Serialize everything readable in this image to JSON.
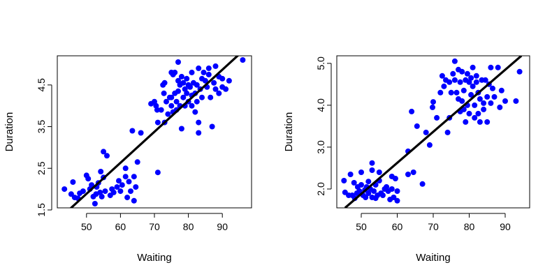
{
  "colors": {
    "points": "#0000ff",
    "fit_line": "#000000",
    "axis": "#000000"
  },
  "chart_data": [
    {
      "type": "scatter",
      "title": "",
      "xlabel": "Waiting",
      "ylabel": "Duration",
      "xlim": [
        41.4,
        98.6
      ],
      "ylim": [
        1.55,
        5.2
      ],
      "xticks": [
        50,
        60,
        70,
        80,
        90
      ],
      "xtick_labels": [
        "50",
        "60",
        "70",
        "80",
        "90"
      ],
      "yticks": [
        1.5,
        2.5,
        3.5,
        4.5
      ],
      "ytick_labels": [
        "1.5",
        "2.5",
        "3.5",
        "4.5"
      ],
      "fit_line": {
        "x": [
          44.8,
          96.5
        ],
        "y": [
          1.5,
          5.35
        ]
      },
      "points": [
        [
          43.5,
          2.0
        ],
        [
          45.5,
          1.88
        ],
        [
          46.0,
          2.17
        ],
        [
          46.5,
          1.8
        ],
        [
          47.5,
          1.78
        ],
        [
          48.0,
          1.9
        ],
        [
          49.0,
          1.95
        ],
        [
          50.0,
          2.33
        ],
        [
          50.5,
          2.25
        ],
        [
          51.0,
          2.0
        ],
        [
          51.5,
          2.1
        ],
        [
          52.0,
          1.82
        ],
        [
          52.5,
          1.65
        ],
        [
          52.8,
          1.88
        ],
        [
          53.0,
          2.05
        ],
        [
          53.5,
          2.15
        ],
        [
          54.0,
          1.92
        ],
        [
          54.2,
          2.42
        ],
        [
          54.5,
          1.82
        ],
        [
          55.0,
          2.28
        ],
        [
          55.0,
          2.9
        ],
        [
          55.5,
          1.95
        ],
        [
          56.0,
          2.8
        ],
        [
          57.0,
          1.85
        ],
        [
          57.5,
          2.0
        ],
        [
          58.0,
          1.92
        ],
        [
          59.0,
          2.05
        ],
        [
          59.5,
          2.2
        ],
        [
          60.0,
          1.95
        ],
        [
          60.5,
          2.1
        ],
        [
          61.5,
          2.3
        ],
        [
          61.5,
          2.5
        ],
        [
          62.0,
          1.8
        ],
        [
          62.5,
          2.18
        ],
        [
          63.0,
          1.95
        ],
        [
          63.5,
          3.4
        ],
        [
          64.0,
          2.3
        ],
        [
          64.0,
          1.72
        ],
        [
          64.5,
          2.05
        ],
        [
          65.0,
          2.65
        ],
        [
          66.0,
          3.35
        ],
        [
          69.0,
          4.05
        ],
        [
          70.0,
          4.1
        ],
        [
          70.5,
          4.0
        ],
        [
          70.8,
          3.9
        ],
        [
          71.0,
          3.6
        ],
        [
          71.0,
          2.4
        ],
        [
          72.0,
          3.9
        ],
        [
          72.5,
          4.5
        ],
        [
          72.8,
          4.3
        ],
        [
          73.0,
          4.55
        ],
        [
          73.0,
          3.6
        ],
        [
          73.5,
          4.1
        ],
        [
          74.0,
          3.8
        ],
        [
          74.5,
          4.2
        ],
        [
          75.0,
          4.8
        ],
        [
          75.0,
          4.2
        ],
        [
          75.0,
          4.0
        ],
        [
          75.5,
          3.85
        ],
        [
          75.5,
          4.75
        ],
        [
          76.0,
          4.8
        ],
        [
          76.0,
          4.3
        ],
        [
          76.5,
          4.1
        ],
        [
          76.5,
          3.9
        ],
        [
          77.0,
          5.05
        ],
        [
          77.0,
          4.6
        ],
        [
          77.0,
          4.35
        ],
        [
          77.5,
          4.5
        ],
        [
          77.5,
          4.0
        ],
        [
          78.0,
          4.7
        ],
        [
          78.0,
          3.45
        ],
        [
          78.5,
          4.2
        ],
        [
          78.5,
          4.55
        ],
        [
          79.0,
          4.4
        ],
        [
          79.0,
          4.0
        ],
        [
          79.5,
          4.65
        ],
        [
          79.5,
          4.3
        ],
        [
          80.0,
          4.1
        ],
        [
          80.0,
          4.5
        ],
        [
          80.5,
          4.45
        ],
        [
          81.0,
          4.8
        ],
        [
          81.0,
          4.25
        ],
        [
          81.0,
          4.0
        ],
        [
          81.5,
          4.55
        ],
        [
          82.0,
          4.3
        ],
        [
          82.0,
          3.85
        ],
        [
          82.5,
          4.5
        ],
        [
          82.5,
          4.1
        ],
        [
          83.0,
          4.9
        ],
        [
          83.0,
          3.35
        ],
        [
          83.0,
          3.6
        ],
        [
          83.5,
          4.4
        ],
        [
          84.0,
          4.65
        ],
        [
          84.0,
          4.2
        ],
        [
          84.5,
          4.8
        ],
        [
          85.0,
          4.6
        ],
        [
          85.5,
          4.45
        ],
        [
          86.0,
          4.9
        ],
        [
          86.0,
          4.75
        ],
        [
          86.5,
          4.2
        ],
        [
          87.0,
          3.5
        ],
        [
          87.5,
          4.55
        ],
        [
          88.0,
          4.95
        ],
        [
          88.0,
          4.4
        ],
        [
          89.0,
          4.7
        ],
        [
          89.0,
          4.3
        ],
        [
          90.0,
          4.45
        ],
        [
          90.0,
          4.65
        ],
        [
          91.0,
          4.4
        ],
        [
          92.0,
          4.6
        ],
        [
          96.0,
          5.1
        ]
      ]
    },
    {
      "type": "scatter",
      "title": "",
      "xlabel": "Waiting",
      "ylabel": "Duration",
      "xlim": [
        43.2,
        96.8
      ],
      "ylim": [
        1.55,
        5.18
      ],
      "xticks": [
        50,
        60,
        70,
        80,
        90
      ],
      "xtick_labels": [
        "50",
        "60",
        "70",
        "80",
        "90"
      ],
      "yticks": [
        2.0,
        3.0,
        4.0,
        5.0
      ],
      "ytick_labels": [
        "2.0",
        "3.0",
        "4.0",
        "5.0"
      ],
      "fit_line": {
        "x": [
          45.5,
          94.5
        ],
        "y": [
          1.55,
          5.18
        ]
      },
      "points": [
        [
          45.2,
          2.2
        ],
        [
          45.5,
          1.92
        ],
        [
          46.5,
          1.85
        ],
        [
          47.0,
          2.35
        ],
        [
          47.5,
          1.85
        ],
        [
          48.0,
          2.15
        ],
        [
          48.2,
          1.78
        ],
        [
          48.8,
          1.9
        ],
        [
          49.0,
          2.05
        ],
        [
          49.5,
          1.95
        ],
        [
          50.0,
          2.4
        ],
        [
          50.0,
          2.1
        ],
        [
          50.5,
          1.85
        ],
        [
          51.0,
          1.98
        ],
        [
          51.2,
          1.8
        ],
        [
          51.5,
          2.05
        ],
        [
          52.0,
          2.18
        ],
        [
          52.0,
          1.9
        ],
        [
          52.5,
          2.0
        ],
        [
          53.0,
          2.62
        ],
        [
          53.0,
          2.45
        ],
        [
          53.0,
          1.8
        ],
        [
          53.5,
          1.95
        ],
        [
          54.0,
          1.78
        ],
        [
          54.0,
          2.1
        ],
        [
          54.5,
          1.85
        ],
        [
          55.0,
          2.2
        ],
        [
          55.0,
          2.4
        ],
        [
          55.5,
          1.9
        ],
        [
          56.0,
          1.85
        ],
        [
          56.5,
          2.0
        ],
        [
          57.0,
          2.05
        ],
        [
          57.5,
          1.95
        ],
        [
          58.0,
          1.75
        ],
        [
          58.5,
          2.3
        ],
        [
          58.5,
          2.0
        ],
        [
          59.0,
          1.8
        ],
        [
          59.5,
          2.25
        ],
        [
          60.0,
          1.72
        ],
        [
          60.0,
          1.95
        ],
        [
          63.0,
          2.9
        ],
        [
          63.0,
          2.35
        ],
        [
          64.0,
          3.85
        ],
        [
          64.5,
          2.4
        ],
        [
          65.5,
          3.5
        ],
        [
          67.0,
          2.12
        ],
        [
          68.0,
          3.35
        ],
        [
          69.0,
          3.05
        ],
        [
          69.8,
          3.95
        ],
        [
          70.0,
          4.08
        ],
        [
          71.0,
          3.7
        ],
        [
          72.0,
          4.3
        ],
        [
          72.5,
          4.7
        ],
        [
          73.0,
          4.45
        ],
        [
          73.5,
          4.6
        ],
        [
          74.0,
          3.35
        ],
        [
          74.5,
          3.7
        ],
        [
          74.5,
          4.55
        ],
        [
          75.0,
          4.3
        ],
        [
          75.5,
          4.75
        ],
        [
          76.0,
          5.05
        ],
        [
          76.0,
          4.6
        ],
        [
          76.5,
          4.3
        ],
        [
          77.0,
          4.15
        ],
        [
          77.0,
          4.85
        ],
        [
          77.5,
          4.55
        ],
        [
          77.5,
          3.85
        ],
        [
          78.0,
          4.1
        ],
        [
          78.0,
          4.8
        ],
        [
          78.5,
          4.35
        ],
        [
          78.5,
          3.9
        ],
        [
          79.0,
          4.6
        ],
        [
          79.0,
          3.6
        ],
        [
          79.5,
          4.0
        ],
        [
          79.5,
          4.75
        ],
        [
          80.0,
          4.55
        ],
        [
          80.0,
          3.8
        ],
        [
          80.5,
          4.25
        ],
        [
          80.5,
          4.65
        ],
        [
          81.0,
          4.9
        ],
        [
          81.0,
          4.45
        ],
        [
          81.5,
          4.0
        ],
        [
          81.5,
          3.7
        ],
        [
          82.0,
          4.55
        ],
        [
          82.0,
          4.7
        ],
        [
          82.5,
          4.3
        ],
        [
          82.5,
          3.8
        ],
        [
          83.0,
          4.15
        ],
        [
          83.0,
          3.6
        ],
        [
          83.5,
          4.6
        ],
        [
          84.0,
          4.05
        ],
        [
          84.0,
          3.9
        ],
        [
          84.5,
          4.6
        ],
        [
          85.0,
          3.6
        ],
        [
          85.0,
          4.2
        ],
        [
          85.5,
          4.5
        ],
        [
          86.0,
          4.9
        ],
        [
          86.0,
          4.05
        ],
        [
          86.5,
          4.4
        ],
        [
          87.0,
          4.2
        ],
        [
          88.0,
          4.9
        ],
        [
          88.5,
          3.95
        ],
        [
          89.0,
          4.35
        ],
        [
          90.0,
          4.1
        ],
        [
          93.0,
          4.1
        ],
        [
          94.0,
          4.8
        ]
      ]
    }
  ]
}
